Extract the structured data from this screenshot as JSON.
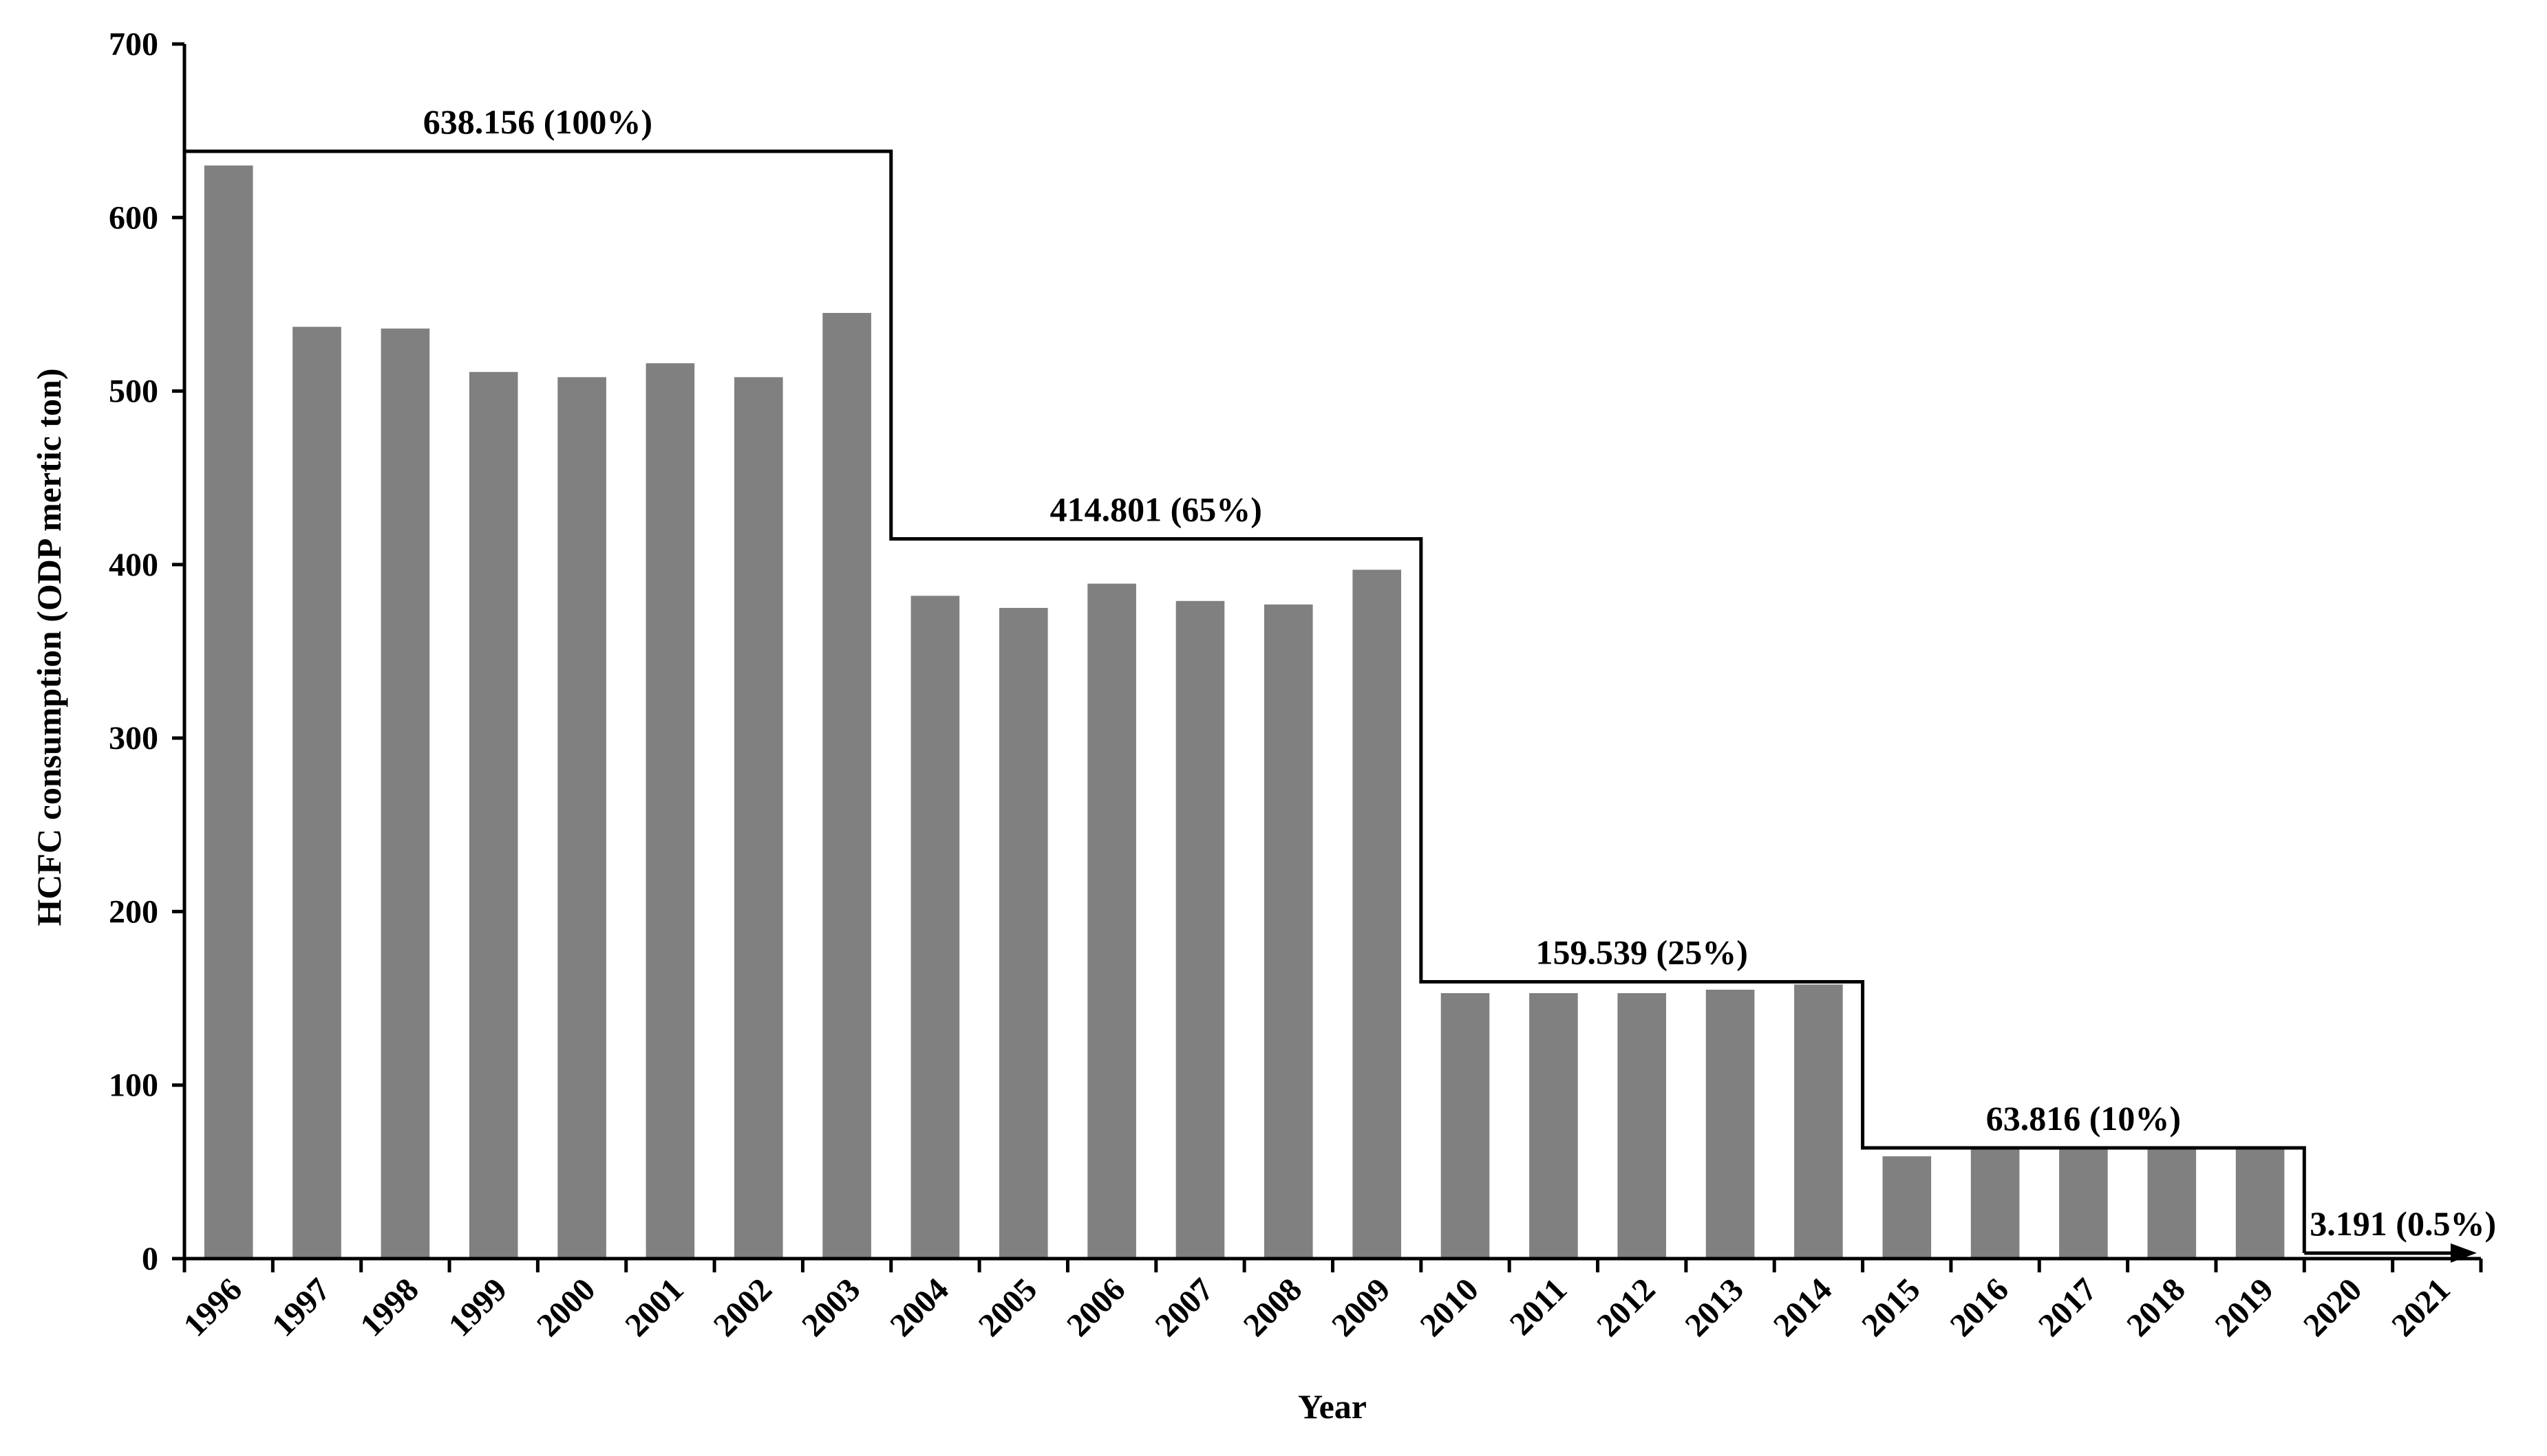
{
  "chart_data": {
    "type": "bar",
    "title": "",
    "xlabel": "Year",
    "ylabel": "HCFC consumption (ODP mertic ton)",
    "ylim": [
      0,
      700
    ],
    "yticks": [
      "0",
      "100",
      "200",
      "300",
      "400",
      "500",
      "600",
      "700"
    ],
    "grid": false,
    "categories": [
      "1996",
      "1997",
      "1998",
      "1999",
      "2000",
      "2001",
      "2002",
      "2003",
      "2004",
      "2005",
      "2006",
      "2007",
      "2008",
      "2009",
      "2010",
      "2011",
      "2012",
      "2013",
      "2014",
      "2015",
      "2016",
      "2017",
      "2018",
      "2019",
      "2020",
      "2021"
    ],
    "series": [
      {
        "values": [
          630,
          537,
          536,
          511,
          508,
          516,
          508,
          545,
          382,
          375,
          389,
          379,
          377,
          397,
          153,
          153,
          153,
          155,
          158,
          59,
          63,
          63,
          63,
          63,
          null,
          null
        ]
      }
    ],
    "limits": [
      {
        "label": "638.156 (100%)",
        "value": 638.156,
        "from": "1996",
        "to": "2003"
      },
      {
        "label": "414.801 (65%)",
        "value": 414.801,
        "from": "2004",
        "to": "2009"
      },
      {
        "label": "159.539 (25%)",
        "value": 159.539,
        "from": "2010",
        "to": "2014"
      },
      {
        "label": "63.816 (10%)",
        "value": 63.816,
        "from": "2015",
        "to": "2019"
      },
      {
        "label": "3.191 (0.5%)",
        "value": 3.191,
        "from": "2020",
        "to": "2021"
      }
    ],
    "colors": {
      "bar": "#808080",
      "axis": "#000000",
      "limit_line": "#000000"
    }
  }
}
